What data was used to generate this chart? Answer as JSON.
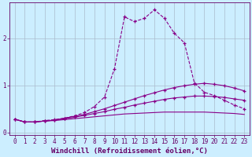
{
  "xlabel": "Windchill (Refroidissement éolien,°C)",
  "background_color": "#cceeff",
  "grid_color": "#aabbcc",
  "line_color": "#880088",
  "xlim": [
    -0.5,
    23.5
  ],
  "ylim": [
    -0.05,
    2.75
  ],
  "xticks": [
    0,
    1,
    2,
    3,
    4,
    5,
    6,
    7,
    8,
    9,
    10,
    11,
    12,
    13,
    14,
    15,
    16,
    17,
    18,
    19,
    20,
    21,
    22,
    23
  ],
  "yticks": [
    0,
    1,
    2
  ],
  "series": [
    {
      "x": [
        0,
        1,
        2,
        3,
        4,
        5,
        6,
        7,
        8,
        9,
        10,
        11,
        12,
        13,
        14,
        15,
        16,
        17,
        18,
        19,
        20,
        21,
        22,
        23
      ],
      "y": [
        0.28,
        0.22,
        0.22,
        0.25,
        0.27,
        0.3,
        0.35,
        0.42,
        0.55,
        0.75,
        1.35,
        2.45,
        2.35,
        2.42,
        2.6,
        2.42,
        2.1,
        1.9,
        1.05,
        0.85,
        0.78,
        0.68,
        0.58,
        0.5
      ],
      "marker": "+",
      "linestyle": "--",
      "linewidth": 0.8
    },
    {
      "x": [
        0,
        1,
        2,
        3,
        4,
        5,
        6,
        7,
        8,
        9,
        10,
        11,
        12,
        13,
        14,
        15,
        16,
        17,
        18,
        19,
        20,
        21,
        22,
        23
      ],
      "y": [
        0.28,
        0.22,
        0.22,
        0.24,
        0.26,
        0.3,
        0.34,
        0.38,
        0.44,
        0.5,
        0.57,
        0.64,
        0.71,
        0.78,
        0.84,
        0.9,
        0.95,
        0.99,
        1.02,
        1.04,
        1.02,
        0.99,
        0.94,
        0.88
      ],
      "marker": "+",
      "linestyle": "-",
      "linewidth": 0.8
    },
    {
      "x": [
        0,
        1,
        2,
        3,
        4,
        5,
        6,
        7,
        8,
        9,
        10,
        11,
        12,
        13,
        14,
        15,
        16,
        17,
        18,
        19,
        20,
        21,
        22,
        23
      ],
      "y": [
        0.28,
        0.22,
        0.22,
        0.24,
        0.26,
        0.29,
        0.32,
        0.36,
        0.4,
        0.44,
        0.49,
        0.53,
        0.58,
        0.62,
        0.66,
        0.7,
        0.73,
        0.75,
        0.77,
        0.77,
        0.76,
        0.74,
        0.71,
        0.68
      ],
      "marker": "+",
      "linestyle": "-",
      "linewidth": 0.8
    },
    {
      "x": [
        0,
        1,
        2,
        3,
        4,
        5,
        6,
        7,
        8,
        9,
        10,
        11,
        12,
        13,
        14,
        15,
        16,
        17,
        18,
        19,
        20,
        21,
        22,
        23
      ],
      "y": [
        0.28,
        0.22,
        0.22,
        0.24,
        0.25,
        0.27,
        0.29,
        0.31,
        0.33,
        0.35,
        0.37,
        0.39,
        0.4,
        0.41,
        0.42,
        0.43,
        0.43,
        0.43,
        0.43,
        0.43,
        0.42,
        0.41,
        0.4,
        0.38
      ],
      "marker": null,
      "linestyle": "-",
      "linewidth": 0.8
    }
  ],
  "font_color": "#660066",
  "tick_fontsize": 5.5,
  "label_fontsize": 6.5
}
